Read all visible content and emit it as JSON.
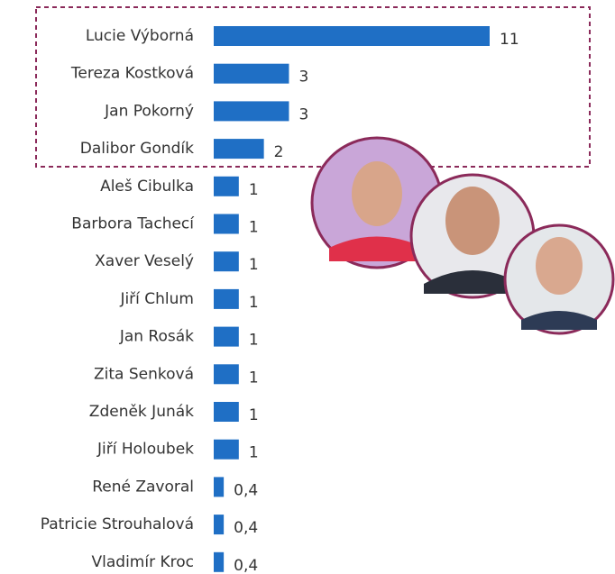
{
  "chart_data": {
    "type": "bar",
    "categories": [
      "Lucie Výborná",
      "Tereza Kostková",
      "Jan Pokorný",
      "Dalibor Gondík",
      "Aleš Cibulka",
      "Barbora Tachecí",
      "Xaver Veselý",
      "Jiří Chlum",
      "Jan Rosák",
      "Zita Senková",
      "Zdeněk Junák",
      "Jiří Holoubek",
      "René Zavoral",
      "Patricie Strouhalová",
      "Vladimír Kroc"
    ],
    "values": [
      11,
      3,
      3,
      2,
      1,
      1,
      1,
      1,
      1,
      1,
      1,
      1,
      0.4,
      0.4,
      0.4
    ],
    "value_labels": [
      "11",
      "3",
      "3",
      "2",
      "1",
      "1",
      "1",
      "1",
      "1",
      "1",
      "1",
      "1",
      "0,4",
      "0,4",
      "0,4"
    ],
    "color": "#1f6fc5"
  }
}
